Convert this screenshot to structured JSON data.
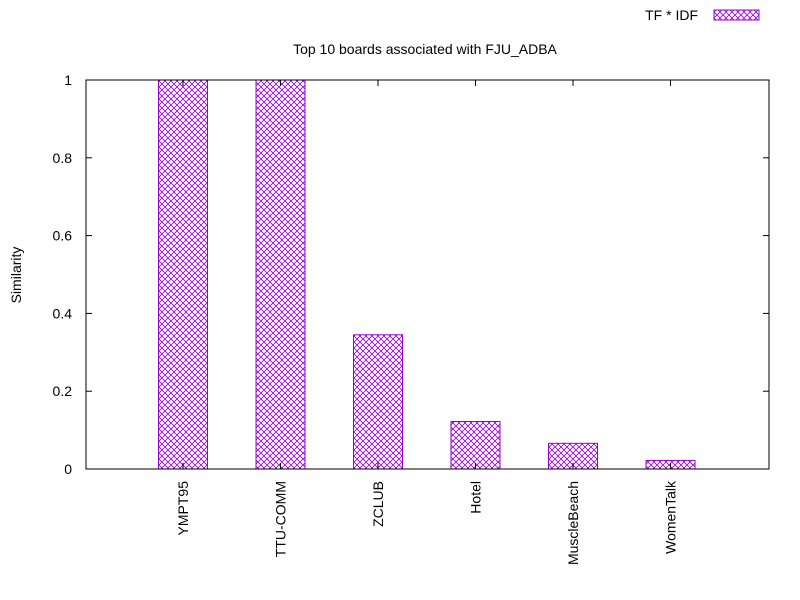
{
  "chart_data": {
    "type": "bar",
    "title": "Top 10 boards associated with FJU_ADBA",
    "xlabel": "",
    "ylabel": "Similarity",
    "categories": [
      "YMPT95",
      "TTU-COMM",
      "ZCLUB",
      "Hotel",
      "MuscleBeach",
      "WomenTalk"
    ],
    "series": [
      {
        "name": "TF * IDF",
        "values": [
          1.0,
          1.0,
          0.345,
          0.122,
          0.066,
          0.022
        ]
      }
    ],
    "ylim": [
      0,
      1
    ],
    "yticks": [
      0,
      0.2,
      0.4,
      0.6,
      0.8,
      1
    ],
    "ytick_labels": [
      "0",
      "0.2",
      "0.4",
      "0.6",
      "0.8",
      "1"
    ],
    "grid": false,
    "legend_position": "top-right",
    "colors": {
      "bar_stroke": "#9400d3",
      "bar_pattern": "#9400d3",
      "axis": "#000000"
    }
  }
}
